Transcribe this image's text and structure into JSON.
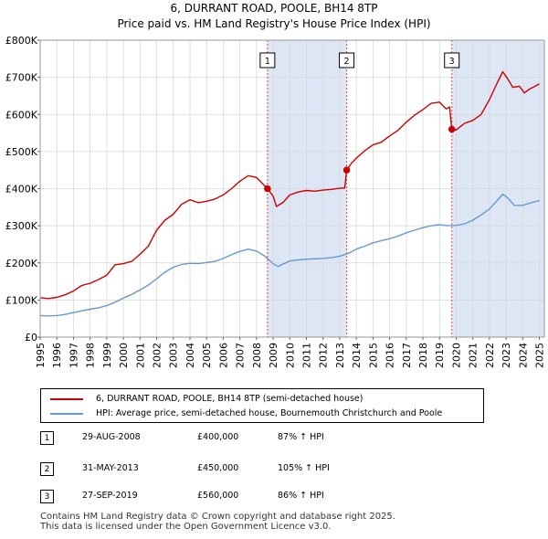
{
  "chart_data": {
    "type": "line",
    "title": "6, DURRANT ROAD, POOLE, BH14 8TP",
    "subtitle": "Price paid vs. HM Land Registry's House Price Index (HPI)",
    "xlim": [
      1995,
      2025.3
    ],
    "ylim": [
      0,
      800000
    ],
    "x_ticks": [
      "1995",
      "1996",
      "1997",
      "1998",
      "1999",
      "2000",
      "2001",
      "2002",
      "2003",
      "2004",
      "2005",
      "2006",
      "2007",
      "2008",
      "2009",
      "2010",
      "2011",
      "2012",
      "2013",
      "2014",
      "2015",
      "2016",
      "2017",
      "2018",
      "2019",
      "2020",
      "2021",
      "2022",
      "2023",
      "2024",
      "2025"
    ],
    "y_ticks": [
      {
        "value": 0,
        "label": "£0"
      },
      {
        "value": 100000,
        "label": "£100K"
      },
      {
        "value": 200000,
        "label": "£200K"
      },
      {
        "value": 300000,
        "label": "£300K"
      },
      {
        "value": 400000,
        "label": "£400K"
      },
      {
        "value": 500000,
        "label": "£500K"
      },
      {
        "value": 600000,
        "label": "£600K"
      },
      {
        "value": 700000,
        "label": "£700K"
      },
      {
        "value": 800000,
        "label": "£800K"
      }
    ],
    "colors": {
      "property": "#cc0000",
      "hpi": "#6699cc",
      "shade": "#dde6f5",
      "marker_line": "#dd4444"
    },
    "series": [
      {
        "name": "6, DURRANT ROAD, POOLE, BH14 8TP (semi-detached house)",
        "color": "#cc0000",
        "x": [
          1995.0,
          1995.5,
          1996.0,
          1996.5,
          1997.0,
          1997.5,
          1998.0,
          1998.5,
          1999.0,
          1999.5,
          2000.0,
          2000.5,
          2001.0,
          2001.5,
          2002.0,
          2002.5,
          2003.0,
          2003.5,
          2004.0,
          2004.5,
          2005.0,
          2005.5,
          2006.0,
          2006.5,
          2007.0,
          2007.5,
          2008.0,
          2008.4,
          2008.66,
          2009.0,
          2009.2,
          2009.6,
          2010.0,
          2010.5,
          2011.0,
          2011.5,
          2012.0,
          2012.5,
          2013.0,
          2013.3,
          2013.42,
          2013.7,
          2014.0,
          2014.5,
          2015.0,
          2015.5,
          2016.0,
          2016.5,
          2017.0,
          2017.5,
          2018.0,
          2018.5,
          2019.0,
          2019.4,
          2019.6,
          2019.74,
          2020.0,
          2020.5,
          2021.0,
          2021.5,
          2022.0,
          2022.5,
          2022.8,
          2023.1,
          2023.4,
          2023.8,
          2024.1,
          2024.4,
          2024.7,
          2025.0
        ],
        "values": [
          106000,
          104000,
          107000,
          114000,
          124000,
          139000,
          145000,
          155000,
          167000,
          195000,
          198000,
          204000,
          223000,
          245000,
          288000,
          315000,
          331000,
          358000,
          370000,
          362000,
          366000,
          372000,
          383000,
          400000,
          420000,
          435000,
          430000,
          412000,
          400000,
          380000,
          352000,
          363000,
          383000,
          391000,
          395000,
          393000,
          396000,
          398000,
          401000,
          402000,
          450000,
          468000,
          482000,
          502000,
          518000,
          525000,
          542000,
          557000,
          579000,
          598000,
          613000,
          630000,
          633000,
          615000,
          620000,
          560000,
          558000,
          576000,
          584000,
          600000,
          640000,
          688000,
          715000,
          696000,
          673000,
          676000,
          658000,
          668000,
          675000,
          682000
        ]
      },
      {
        "name": "HPI: Average price, semi-detached house, Bournemouth Christchurch and Poole",
        "color": "#6699cc",
        "x": [
          1995.0,
          1995.5,
          1996.0,
          1996.5,
          1997.0,
          1997.5,
          1998.0,
          1998.5,
          1999.0,
          1999.5,
          2000.0,
          2000.5,
          2001.0,
          2001.5,
          2002.0,
          2002.5,
          2003.0,
          2003.5,
          2004.0,
          2004.5,
          2005.0,
          2005.5,
          2006.0,
          2006.5,
          2007.0,
          2007.5,
          2008.0,
          2008.5,
          2009.0,
          2009.3,
          2009.6,
          2010.0,
          2010.5,
          2011.0,
          2011.5,
          2012.0,
          2012.5,
          2013.0,
          2013.5,
          2014.0,
          2014.5,
          2015.0,
          2015.5,
          2016.0,
          2016.5,
          2017.0,
          2017.5,
          2018.0,
          2018.5,
          2019.0,
          2019.5,
          2020.0,
          2020.5,
          2021.0,
          2021.5,
          2022.0,
          2022.5,
          2022.8,
          2023.1,
          2023.5,
          2024.0,
          2024.5,
          2025.0
        ],
        "values": [
          58000,
          57000,
          58000,
          61000,
          66000,
          71000,
          75000,
          79000,
          85000,
          94000,
          105000,
          115000,
          127000,
          140000,
          157000,
          175000,
          188000,
          196000,
          199000,
          198000,
          201000,
          204000,
          212000,
          222000,
          231000,
          237000,
          232000,
          218000,
          198000,
          190000,
          197000,
          205000,
          208000,
          210000,
          211000,
          212000,
          214000,
          218000,
          225000,
          237000,
          245000,
          254000,
          260000,
          265000,
          272000,
          281000,
          288000,
          295000,
          300000,
          303000,
          300000,
          301000,
          305000,
          315000,
          329000,
          345000,
          370000,
          385000,
          375000,
          355000,
          355000,
          362000,
          368000
        ]
      }
    ],
    "sales": [
      {
        "id": "1",
        "x": 2008.66,
        "value": 400000
      },
      {
        "id": "2",
        "x": 2013.42,
        "value": 450000
      },
      {
        "id": "3",
        "x": 2019.74,
        "value": 560000
      }
    ]
  },
  "legend": {
    "property_label": "6, DURRANT ROAD, POOLE, BH14 8TP (semi-detached house)",
    "hpi_label": "HPI: Average price, semi-detached house, Bournemouth Christchurch and Poole"
  },
  "transactions": [
    {
      "num": "1",
      "date": "29-AUG-2008",
      "price": "£400,000",
      "hpi": "87% ↑ HPI"
    },
    {
      "num": "2",
      "date": "31-MAY-2013",
      "price": "£450,000",
      "hpi": "105% ↑ HPI"
    },
    {
      "num": "3",
      "date": "27-SEP-2019",
      "price": "£560,000",
      "hpi": "86% ↑ HPI"
    }
  ],
  "footer": {
    "line1": "Contains HM Land Registry data © Crown copyright and database right 2025.",
    "line2": "This data is licensed under the Open Government Licence v3.0."
  }
}
